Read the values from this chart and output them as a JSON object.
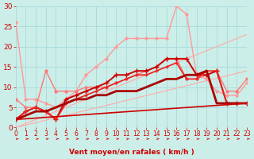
{
  "xlabel": "Vent moyen/en rafales ( km/h )",
  "xlim": [
    0,
    23
  ],
  "ylim": [
    0,
    30
  ],
  "xticks": [
    0,
    1,
    2,
    3,
    4,
    5,
    6,
    7,
    8,
    9,
    10,
    11,
    12,
    13,
    14,
    15,
    16,
    17,
    18,
    19,
    20,
    21,
    22,
    23
  ],
  "yticks": [
    0,
    5,
    10,
    15,
    20,
    25,
    30
  ],
  "background_color": "#cceee8",
  "grid_color": "#aadddd",
  "lines": [
    {
      "x": [
        0,
        23
      ],
      "y": [
        0,
        23
      ],
      "color": "#ffaaaa",
      "lw": 0.8,
      "marker": null,
      "ms": 0
    },
    {
      "x": [
        0,
        23
      ],
      "y": [
        0,
        14
      ],
      "color": "#ffaaaa",
      "lw": 0.8,
      "marker": null,
      "ms": 0
    },
    {
      "x": [
        0,
        1,
        2,
        3,
        4,
        5,
        6,
        7,
        8,
        9,
        10,
        11,
        12,
        13,
        14,
        15,
        16,
        17,
        18,
        19,
        20,
        21,
        22,
        23
      ],
      "y": [
        26,
        7,
        7,
        6,
        5,
        7,
        9,
        13,
        15,
        17,
        20,
        22,
        22,
        22,
        22,
        22,
        30,
        28,
        13,
        12,
        9,
        8,
        8,
        11
      ],
      "color": "#ff9999",
      "lw": 1.0,
      "marker": "o",
      "ms": 2
    },
    {
      "x": [
        0,
        1,
        2,
        3,
        4,
        5,
        6,
        7,
        8,
        9,
        10,
        11,
        12,
        13,
        14,
        15,
        16,
        17,
        18,
        19,
        20,
        21,
        22,
        23
      ],
      "y": [
        7,
        5,
        5,
        14,
        9,
        9,
        9,
        10,
        10,
        10,
        11,
        12,
        13,
        14,
        15,
        17,
        17,
        12,
        12,
        13,
        14,
        9,
        9,
        12
      ],
      "color": "#ff7777",
      "lw": 1.0,
      "marker": "o",
      "ms": 2
    },
    {
      "x": [
        0,
        1,
        2,
        3,
        4,
        5,
        6,
        7,
        8,
        9,
        10,
        11,
        12,
        13,
        14,
        15,
        16,
        17,
        18,
        19,
        20,
        21,
        22,
        23
      ],
      "y": [
        2,
        4,
        5,
        4,
        2,
        7,
        8,
        9,
        10,
        11,
        13,
        13,
        14,
        14,
        15,
        17,
        17,
        17,
        13,
        13,
        14,
        6,
        6,
        6
      ],
      "color": "#cc0000",
      "lw": 1.4,
      "marker": "+",
      "ms": 4
    },
    {
      "x": [
        0,
        1,
        2,
        3,
        4,
        5,
        6,
        7,
        8,
        9,
        10,
        11,
        12,
        13,
        14,
        15,
        16,
        17,
        18,
        19,
        20,
        21,
        22,
        23
      ],
      "y": [
        2,
        4,
        5,
        4,
        2,
        6,
        7,
        8,
        9,
        10,
        11,
        12,
        13,
        13,
        14,
        15,
        16,
        12,
        12,
        14,
        14,
        6,
        6,
        6
      ],
      "color": "#ee2222",
      "lw": 1.2,
      "marker": "+",
      "ms": 3
    },
    {
      "x": [
        0,
        1,
        2,
        3,
        4,
        5,
        6,
        7,
        8,
        9,
        10,
        11,
        12,
        13,
        14,
        15,
        16,
        17,
        18,
        19,
        20,
        21,
        22,
        23
      ],
      "y": [
        2,
        3,
        4,
        4,
        5,
        6,
        7,
        7,
        8,
        8,
        9,
        9,
        9,
        10,
        11,
        12,
        12,
        13,
        13,
        14,
        6,
        6,
        6,
        6
      ],
      "color": "#aa0000",
      "lw": 2.0,
      "marker": null,
      "ms": 0
    },
    {
      "x": [
        0,
        23
      ],
      "y": [
        2,
        6
      ],
      "color": "#cc0000",
      "lw": 1.2,
      "marker": null,
      "ms": 0
    }
  ],
  "arrow_color": "#cc0000",
  "xlabel_color": "#cc0000",
  "tick_color": "#cc0000",
  "tick_fontsize": 5.5
}
